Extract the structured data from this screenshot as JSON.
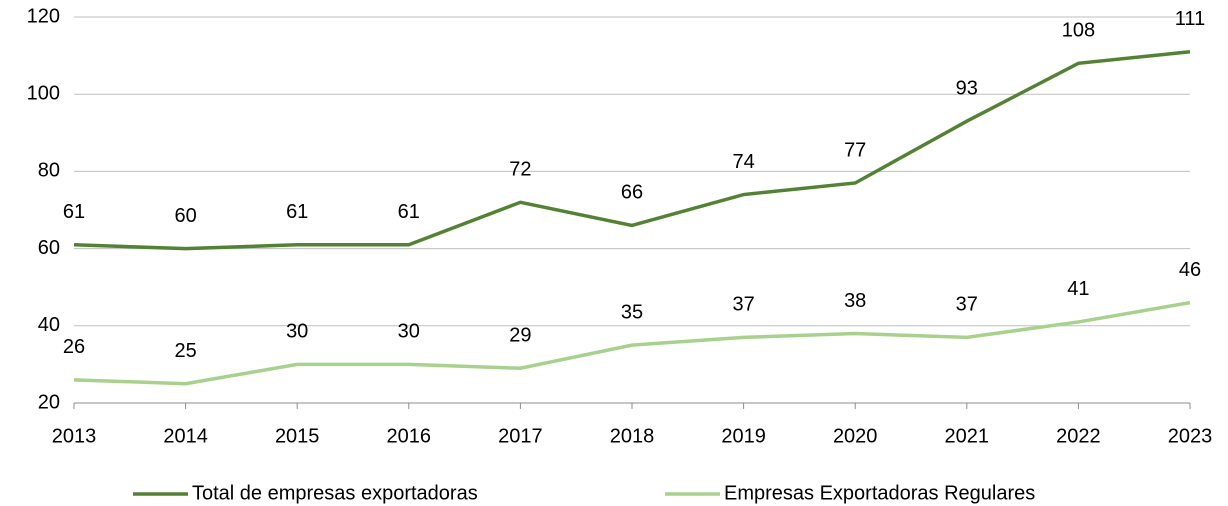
{
  "chart_data": {
    "type": "line",
    "categories": [
      "2013",
      "2014",
      "2015",
      "2016",
      "2017",
      "2018",
      "2019",
      "2020",
      "2021",
      "2022",
      "2023"
    ],
    "series": [
      {
        "name": "Total de empresas exportadoras",
        "color": "#548235",
        "values": [
          61,
          60,
          61,
          61,
          72,
          66,
          74,
          77,
          93,
          108,
          111
        ]
      },
      {
        "name": "Empresas Exportadoras Regulares",
        "color": "#a9d18e",
        "values": [
          26,
          25,
          30,
          30,
          29,
          35,
          37,
          38,
          37,
          41,
          46
        ]
      }
    ],
    "ylim": [
      20,
      120
    ],
    "yticks": [
      20,
      40,
      60,
      80,
      100,
      120
    ],
    "grid": true,
    "legend": "bottom"
  }
}
